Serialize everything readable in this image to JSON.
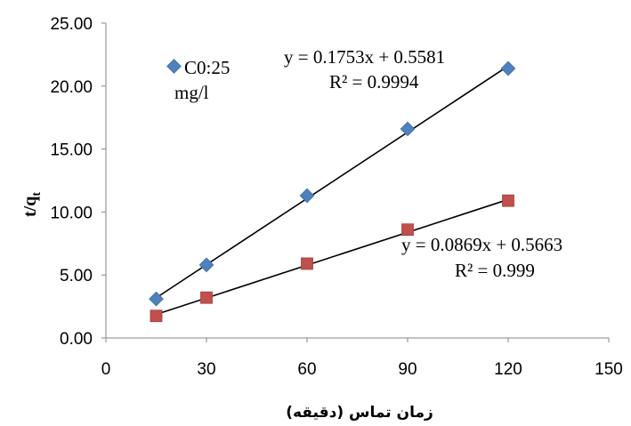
{
  "chart_data": {
    "type": "scatter",
    "xlabel": "زمان تماس (دقیقه)",
    "ylabel_main": "t/q",
    "ylabel_sub": "t",
    "xlim": [
      0,
      150
    ],
    "ylim": [
      0,
      25
    ],
    "xticks": [
      0,
      30,
      60,
      90,
      120,
      150
    ],
    "yticks": [
      "0.00",
      "5.00",
      "10.00",
      "15.00",
      "20.00",
      "25.00"
    ],
    "grid": false,
    "legend": {
      "line1": "C0:25",
      "line2": "mg/l",
      "placement": "top-left"
    },
    "series": [
      {
        "name": "C0:25 mg/l",
        "marker": "diamond",
        "color": "#4f81bd",
        "x": [
          15,
          30,
          60,
          90,
          120
        ],
        "y": [
          3.1,
          5.8,
          11.3,
          16.6,
          21.4
        ],
        "trendline": {
          "slope": 0.1753,
          "intercept": 0.5581,
          "x_range": [
            15,
            120
          ],
          "equation": "y = 0.1753x + 0.5581",
          "r2": "R² = 0.9994"
        }
      },
      {
        "marker": "square",
        "color": "#c0504d",
        "x": [
          15,
          30,
          60,
          90,
          120
        ],
        "y": [
          1.75,
          3.2,
          5.9,
          8.6,
          10.9
        ],
        "trendline": {
          "slope": 0.0869,
          "intercept": 0.5663,
          "x_range": [
            15,
            120
          ],
          "equation": "y = 0.0869x + 0.5663",
          "r2": "R² = 0.999"
        }
      }
    ]
  }
}
